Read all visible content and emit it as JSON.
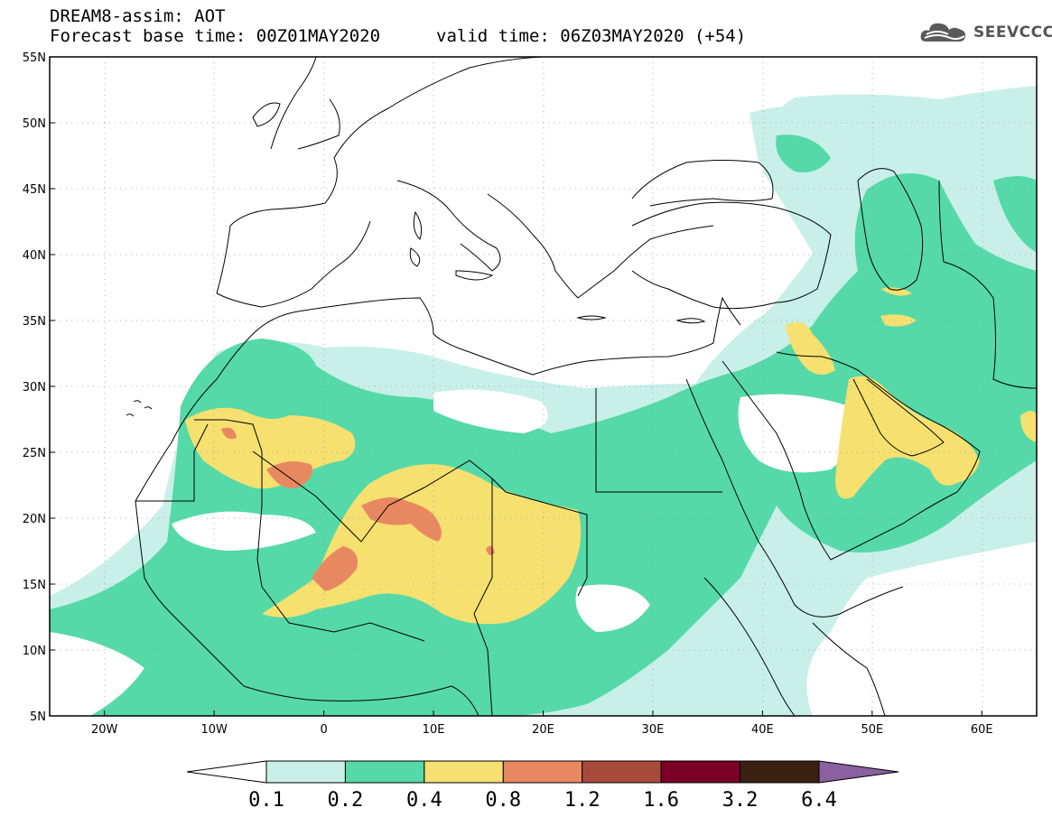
{
  "title": {
    "line1": "DREAM8-assim: AOT",
    "line2": "Forecast base time: 00Z01MAY2020",
    "valid": "valid time: 06Z03MAY2020 (+54)"
  },
  "logo": {
    "text": "SEEVCCC",
    "icon": "cloud-icon"
  },
  "map": {
    "lon_range": [
      -25,
      65
    ],
    "lat_range": [
      5,
      55
    ],
    "lat_ticks": [
      "55N",
      "50N",
      "45N",
      "40N",
      "35N",
      "30N",
      "25N",
      "20N",
      "15N",
      "10N",
      "5N"
    ],
    "lon_ticks": [
      "20W",
      "10W",
      "0",
      "10E",
      "20E",
      "30E",
      "40E",
      "50E",
      "60E"
    ],
    "grid": "dotted"
  },
  "colorbar": {
    "labels": [
      "0.1",
      "0.2",
      "0.4",
      "0.8",
      "1.2",
      "1.6",
      "3.2",
      "6.4"
    ],
    "colors": [
      "#ffffff",
      "#c8f0e8",
      "#55d9a8",
      "#f5e070",
      "#e88860",
      "#a84a3a",
      "#7a0025",
      "#3a2010",
      "#8a60a0"
    ]
  },
  "colors": {
    "c1": "#c8f0e8",
    "c2": "#55d9a8",
    "c3": "#f5e070",
    "c4": "#e88860"
  }
}
